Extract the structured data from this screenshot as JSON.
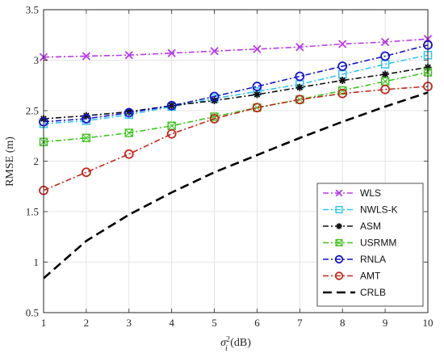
{
  "chart_data": {
    "type": "line",
    "title": "",
    "xlabel_main": "σ",
    "xlabel_sub": "i",
    "xlabel_sup": "2",
    "xlabel_unit": " (dB)",
    "ylabel": "RMSE (m)",
    "xlim": [
      1,
      10
    ],
    "ylim": [
      0.5,
      3.5
    ],
    "xticks": [
      1,
      2,
      3,
      4,
      5,
      6,
      7,
      8,
      9,
      10
    ],
    "yticks": [
      0.5,
      1,
      1.5,
      2,
      2.5,
      3,
      3.5
    ],
    "ytick_labels": [
      "0.5",
      "1",
      "1.5",
      "2",
      "2.5",
      "3",
      "3.5"
    ],
    "grid": true,
    "legend_position": "bottom-right",
    "x": [
      1,
      2,
      3,
      4,
      5,
      6,
      7,
      8,
      9,
      10
    ],
    "series": [
      {
        "name": "WLS",
        "color": "#b93ae8",
        "dash": "dashdot",
        "marker": "x",
        "values": [
          3.03,
          3.04,
          3.05,
          3.07,
          3.09,
          3.11,
          3.13,
          3.16,
          3.18,
          3.21
        ]
      },
      {
        "name": "NWLS-K",
        "color": "#33c6ee",
        "dash": "dashdot",
        "marker": "square",
        "values": [
          2.37,
          2.4,
          2.46,
          2.54,
          2.62,
          2.69,
          2.76,
          2.86,
          2.96,
          3.05
        ]
      },
      {
        "name": "ASM",
        "color": "#111111",
        "dash": "dashdot",
        "marker": "star",
        "values": [
          2.42,
          2.45,
          2.49,
          2.55,
          2.6,
          2.66,
          2.73,
          2.8,
          2.86,
          2.93
        ]
      },
      {
        "name": "USRMM",
        "color": "#3ec41f",
        "dash": "dashdot",
        "marker": "squarex",
        "values": [
          2.19,
          2.23,
          2.28,
          2.35,
          2.44,
          2.53,
          2.61,
          2.7,
          2.79,
          2.88
        ]
      },
      {
        "name": "RNLA",
        "color": "#1414cc",
        "dash": "dashdot",
        "marker": "circle",
        "values": [
          2.39,
          2.42,
          2.48,
          2.55,
          2.64,
          2.74,
          2.84,
          2.94,
          3.04,
          3.15
        ]
      },
      {
        "name": "AMT",
        "color": "#c0281d",
        "dash": "dashdot",
        "marker": "circle",
        "values": [
          1.71,
          1.89,
          2.07,
          2.27,
          2.42,
          2.53,
          2.61,
          2.67,
          2.71,
          2.74
        ]
      },
      {
        "name": "CRLB",
        "color": "#000000",
        "dash": "dashed",
        "marker": "none",
        "values": [
          0.84,
          1.21,
          1.47,
          1.69,
          1.89,
          2.06,
          2.23,
          2.39,
          2.54,
          2.68
        ]
      }
    ]
  }
}
